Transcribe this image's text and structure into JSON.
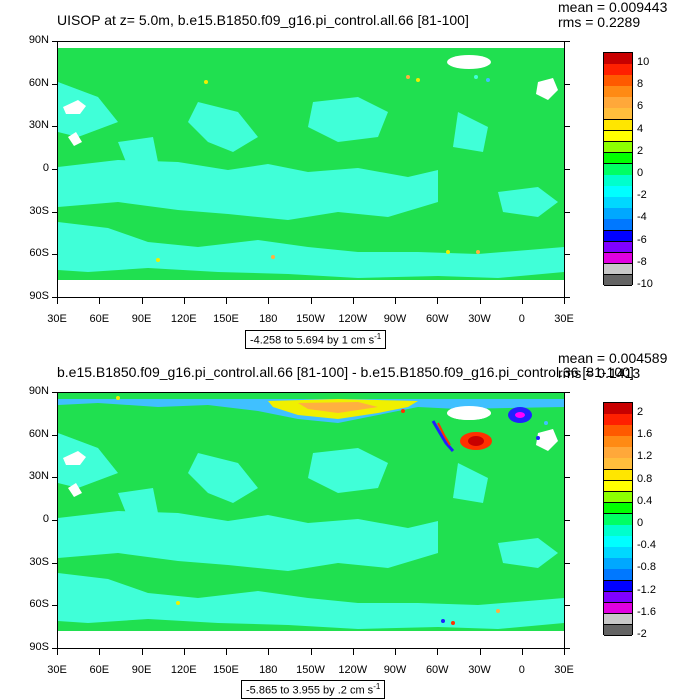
{
  "panels": [
    {
      "id": "top",
      "title": "UISOP at z=   5.0m, b.e15.B1850.f09_g16.pi_control.all.66 [81-100]",
      "mean_text": "mean = 0.009443",
      "rms_text": "rms = 0.2289",
      "range_text": "-4.258 to 5.694 by 1 cm s",
      "range_exp": "-1",
      "lat_labels": [
        "90N",
        "60N",
        "30N",
        "0",
        "30S",
        "60S",
        "90S"
      ],
      "lon_labels": [
        "30E",
        "60E",
        "90E",
        "120E",
        "150E",
        "180",
        "150W",
        "120W",
        "90W",
        "60W",
        "30W",
        "0",
        "30E"
      ],
      "colorbar_labels": [
        "10",
        "8",
        "6",
        "4",
        "2",
        "0",
        "-2",
        "-4",
        "-6",
        "-8",
        "-10"
      ]
    },
    {
      "id": "bottom",
      "title": "b.e15.B1850.f09_g16.pi_control.all.66 [81-100] - b.e15.B1850.f09_g16.pi_control.36 [81-100]",
      "mean_text": "mean = 0.004589",
      "rms_text": "rms = 0.1413",
      "range_text": "-5.865 to 3.955 by .2 cm s",
      "range_exp": "-1",
      "lat_labels": [
        "90N",
        "60N",
        "30N",
        "0",
        "30S",
        "60S",
        "90S"
      ],
      "lon_labels": [
        "30E",
        "60E",
        "90E",
        "120E",
        "150E",
        "180",
        "150W",
        "120W",
        "90W",
        "60W",
        "30W",
        "0",
        "30E"
      ],
      "colorbar_labels": [
        "2",
        "1.6",
        "1.2",
        "0.8",
        "0.4",
        "0",
        "-0.4",
        "-0.8",
        "-1.2",
        "-1.6",
        "-2"
      ]
    }
  ],
  "colorbar_colors": [
    "#c80000",
    "#ff2000",
    "#ff5a00",
    "#ff8a14",
    "#ffa83a",
    "#ffbe3c",
    "#ffe600",
    "#ffff00",
    "#8cff00",
    "#00ff00",
    "#00ff64",
    "#00ffcc",
    "#00ffff",
    "#00d8ff",
    "#00a8ff",
    "#0078ff",
    "#0000ff",
    "#8000ff",
    "#e000e0",
    "#c8c8c8",
    "#646464"
  ],
  "field_colors": {
    "green": "#20e050",
    "cyan": "#40ffd8",
    "yellow": "#f0f000",
    "orange": "#ffb040",
    "red": "#ff3000",
    "blue": "#2020ff",
    "magenta": "#ff00ff",
    "lightblue": "#40c0ff",
    "land": "#ffffff"
  }
}
